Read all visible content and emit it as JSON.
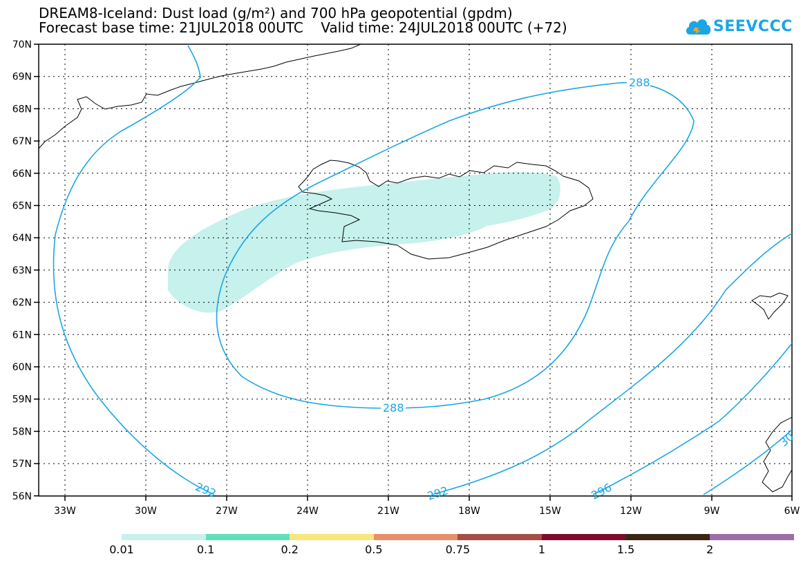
{
  "title": {
    "line1": "DREAM8-Iceland: Dust load (g/m²) and 700 hPa geopotential (gpdm)",
    "line2": "Forecast base time: 21JUL2018 00UTC    Valid time: 24JUL2018 00UTC (+72)"
  },
  "logo": {
    "text": "SEEVCCC",
    "icon": "cloud-icon",
    "color": "#1aa6e6"
  },
  "map": {
    "lat_labels": [
      "70N",
      "69N",
      "68N",
      "67N",
      "66N",
      "65N",
      "64N",
      "63N",
      "62N",
      "61N",
      "60N",
      "59N",
      "58N",
      "57N",
      "56N"
    ],
    "lon_labels": [
      "33W",
      "30W",
      "27W",
      "24W",
      "21W",
      "18W",
      "15W",
      "12W",
      "9W",
      "6W"
    ],
    "contour_color": "#1aa6e6",
    "dust_fill_color": "#c6f1ec",
    "contour_labels": [
      "288",
      "288",
      "292",
      "292",
      "296",
      "30"
    ]
  },
  "legend": {
    "colors": [
      "#c6f1ec",
      "#5fe0b9",
      "#f8e77b",
      "#e6906a",
      "#a54e45",
      "#7f0a2e",
      "#3b2613",
      "#9d6da6"
    ],
    "labels": [
      "0.01",
      "0.1",
      "0.2",
      "0.5",
      "0.75",
      "1",
      "1.5",
      "2"
    ]
  }
}
